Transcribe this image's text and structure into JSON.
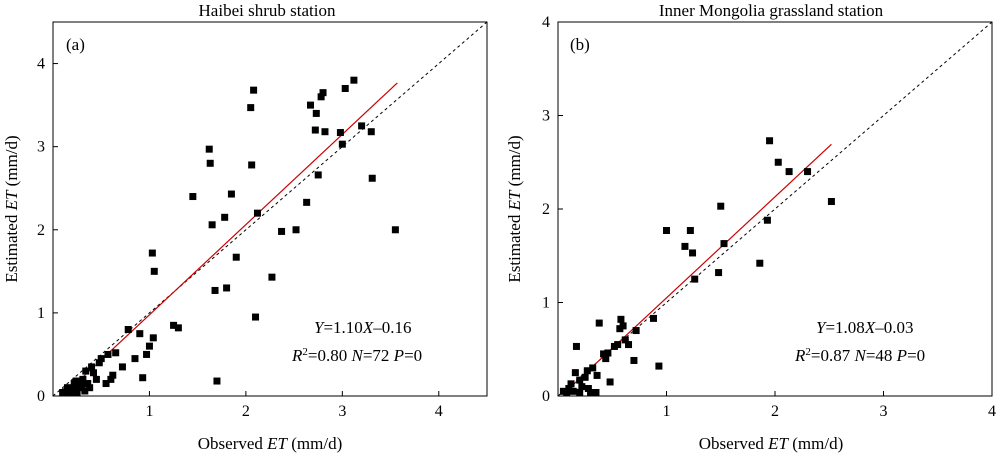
{
  "chart_data": [
    {
      "type": "scatter",
      "panel_label": "(a)",
      "title": "Haibei shrub station",
      "xlabel": {
        "pre": "Observed ",
        "var": "ET",
        "post": " (mm/d)"
      },
      "ylabel": {
        "pre": "Estimated ",
        "var": "ET",
        "post": " (mm/d)"
      },
      "xlim": [
        0,
        4.5
      ],
      "ylim": [
        0,
        4.5
      ],
      "xticks": [
        1,
        2,
        3,
        4
      ],
      "yticks": [
        0,
        1,
        2,
        3,
        4
      ],
      "xtick_labels": [
        "1",
        "2",
        "3",
        "4"
      ],
      "ytick_labels": [
        "0",
        "1",
        "2",
        "3",
        "4"
      ],
      "equation": {
        "y": "Y",
        "rhs": "=1.10",
        "x": "X",
        "tail": "–0.16"
      },
      "stats": {
        "r": "R",
        "r2_rest": "=0.80 ",
        "n": "N",
        "n_val": "=72 ",
        "p": "P",
        "p_val": "=0"
      },
      "fit_line": {
        "slope": 1.1,
        "intercept": -0.16,
        "x_range": [
          0.1,
          3.57
        ],
        "color": "#cc0000"
      },
      "one_to_one_line": true,
      "points": [
        [
          0.1,
          0.02
        ],
        [
          0.13,
          0.05
        ],
        [
          0.15,
          0.1
        ],
        [
          0.18,
          0.04
        ],
        [
          0.2,
          0.08
        ],
        [
          0.22,
          0.15
        ],
        [
          0.25,
          0.03
        ],
        [
          0.27,
          0.1
        ],
        [
          0.3,
          0.12
        ],
        [
          0.31,
          0.2
        ],
        [
          0.33,
          0.06
        ],
        [
          0.34,
          0.3
        ],
        [
          0.36,
          0.15
        ],
        [
          0.38,
          0.1
        ],
        [
          0.4,
          0.35
        ],
        [
          0.42,
          0.28
        ],
        [
          0.45,
          0.2
        ],
        [
          0.5,
          0.45
        ],
        [
          0.55,
          0.15
        ],
        [
          0.57,
          0.5
        ],
        [
          0.6,
          0.2
        ],
        [
          0.62,
          0.25
        ],
        [
          0.65,
          0.52
        ],
        [
          0.72,
          0.35
        ],
        [
          0.78,
          0.8
        ],
        [
          0.85,
          0.45
        ],
        [
          0.9,
          0.75
        ],
        [
          0.93,
          0.22
        ],
        [
          0.97,
          0.5
        ],
        [
          1.0,
          0.6
        ],
        [
          1.03,
          1.72
        ],
        [
          1.04,
          0.7
        ],
        [
          1.05,
          1.5
        ],
        [
          1.25,
          0.85
        ],
        [
          1.3,
          0.82
        ],
        [
          1.45,
          2.4
        ],
        [
          1.62,
          2.97
        ],
        [
          1.63,
          2.8
        ],
        [
          1.65,
          2.06
        ],
        [
          1.68,
          1.27
        ],
        [
          1.7,
          0.18
        ],
        [
          1.78,
          2.15
        ],
        [
          1.8,
          1.3
        ],
        [
          1.85,
          2.43
        ],
        [
          1.9,
          1.67
        ],
        [
          2.05,
          3.47
        ],
        [
          2.06,
          2.78
        ],
        [
          2.08,
          3.68
        ],
        [
          2.1,
          0.95
        ],
        [
          2.12,
          2.2
        ],
        [
          2.27,
          1.43
        ],
        [
          2.37,
          1.98
        ],
        [
          2.52,
          2.0
        ],
        [
          2.63,
          2.33
        ],
        [
          2.67,
          3.5
        ],
        [
          2.72,
          3.2
        ],
        [
          2.73,
          3.4
        ],
        [
          2.75,
          2.66
        ],
        [
          2.78,
          3.6
        ],
        [
          2.8,
          3.65
        ],
        [
          2.82,
          3.18
        ],
        [
          2.98,
          3.17
        ],
        [
          3.0,
          3.03
        ],
        [
          3.03,
          3.7
        ],
        [
          3.12,
          3.8
        ],
        [
          3.2,
          3.25
        ],
        [
          3.3,
          3.18
        ],
        [
          3.31,
          2.62
        ],
        [
          3.55,
          2.0
        ],
        [
          0.16,
          0.0
        ],
        [
          0.24,
          0.18
        ],
        [
          0.48,
          0.4
        ]
      ]
    },
    {
      "type": "scatter",
      "panel_label": "(b)",
      "title": "Inner Mongolia grassland station",
      "xlabel": {
        "pre": "Observed ",
        "var": "ET",
        "post": " (mm/d)"
      },
      "ylabel": {
        "pre": "Estimated ",
        "var": "ET",
        "post": " (mm/d)"
      },
      "xlim": [
        0,
        4
      ],
      "ylim": [
        0,
        4
      ],
      "xticks": [
        1,
        2,
        3,
        4
      ],
      "yticks": [
        0,
        1,
        2,
        3,
        4
      ],
      "xtick_labels": [
        "1",
        "2",
        "3",
        "4"
      ],
      "ytick_labels": [
        "0",
        "1",
        "2",
        "3",
        "4"
      ],
      "equation": {
        "y": "Y",
        "rhs": "=1.08",
        "x": "X",
        "tail": "–0.03"
      },
      "stats": {
        "r": "R",
        "r2_rest": "=0.87 ",
        "n": "N",
        "n_val": "=48 ",
        "p": "P",
        "p_val": "=0"
      },
      "fit_line": {
        "slope": 1.08,
        "intercept": -0.03,
        "x_range": [
          0.05,
          2.52
        ],
        "color": "#cc0000"
      },
      "one_to_one_line": true,
      "points": [
        [
          0.05,
          0.05
        ],
        [
          0.1,
          0.08
        ],
        [
          0.12,
          0.13
        ],
        [
          0.14,
          0.05
        ],
        [
          0.16,
          0.25
        ],
        [
          0.17,
          0.53
        ],
        [
          0.2,
          0.17
        ],
        [
          0.22,
          0.1
        ],
        [
          0.25,
          0.2
        ],
        [
          0.27,
          0.27
        ],
        [
          0.28,
          0.08
        ],
        [
          0.32,
          0.3
        ],
        [
          0.35,
          0.02
        ],
        [
          0.36,
          0.22
        ],
        [
          0.38,
          0.78
        ],
        [
          0.42,
          0.45
        ],
        [
          0.46,
          0.46
        ],
        [
          0.48,
          0.15
        ],
        [
          0.52,
          0.53
        ],
        [
          0.55,
          0.55
        ],
        [
          0.57,
          0.72
        ],
        [
          0.58,
          0.82
        ],
        [
          0.6,
          0.75
        ],
        [
          0.62,
          0.6
        ],
        [
          0.7,
          0.38
        ],
        [
          0.72,
          0.7
        ],
        [
          0.88,
          0.83
        ],
        [
          0.93,
          0.32
        ],
        [
          1.0,
          1.77
        ],
        [
          1.17,
          1.6
        ],
        [
          1.22,
          1.77
        ],
        [
          1.24,
          1.53
        ],
        [
          1.26,
          1.25
        ],
        [
          1.48,
          1.32
        ],
        [
          1.5,
          2.03
        ],
        [
          1.53,
          1.63
        ],
        [
          1.86,
          1.42
        ],
        [
          1.93,
          1.88
        ],
        [
          1.95,
          2.73
        ],
        [
          2.03,
          2.5
        ],
        [
          2.13,
          2.4
        ],
        [
          2.3,
          2.4
        ],
        [
          2.52,
          2.08
        ],
        [
          0.3,
          0.02
        ],
        [
          0.08,
          0.0
        ],
        [
          0.44,
          0.4
        ],
        [
          0.65,
          0.55
        ],
        [
          0.2,
          0.04
        ]
      ]
    }
  ]
}
